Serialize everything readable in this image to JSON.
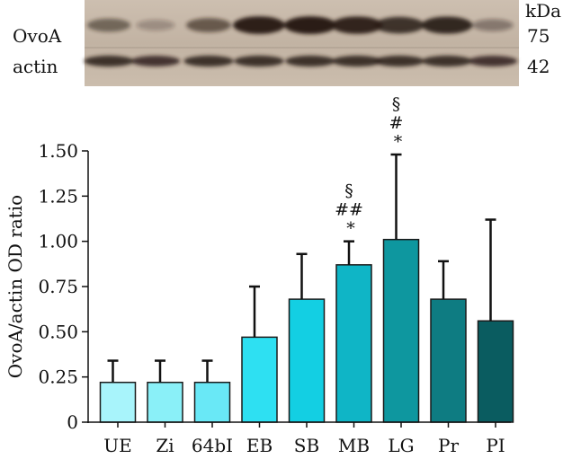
{
  "blot": {
    "rows": [
      {
        "label": "OvoA",
        "size": "75",
        "intensities": [
          0.45,
          0.15,
          0.55,
          0.98,
          1.0,
          0.95,
          0.85,
          0.92,
          0.3
        ]
      },
      {
        "label": "actin",
        "size": "42",
        "intensities": [
          0.85,
          0.8,
          0.85,
          0.85,
          0.85,
          0.85,
          0.85,
          0.85,
          0.8
        ]
      }
    ],
    "unit": "kDa"
  },
  "colors": {
    "axis": "#111111",
    "band": "#2a1c14",
    "membrane": "#c6b8a8",
    "error": "#111111",
    "bar_outline": "#1a1a1a"
  },
  "chart_data": {
    "type": "bar",
    "categories": [
      "UE",
      "Zi",
      "64bI",
      "EB",
      "SB",
      "MB",
      "LG",
      "Pr",
      "PI"
    ],
    "values": [
      0.22,
      0.22,
      0.22,
      0.47,
      0.68,
      0.87,
      1.01,
      0.68,
      0.56
    ],
    "errors": [
      0.12,
      0.12,
      0.12,
      0.28,
      0.25,
      0.13,
      0.47,
      0.21,
      0.56
    ],
    "bar_colors": [
      "#a8f4fb",
      "#8af0f8",
      "#69e8f6",
      "#2ee0f2",
      "#13cfe3",
      "#0fb5c6",
      "#0e979f",
      "#0e7c82",
      "#0a5c60"
    ],
    "annotations": [
      {
        "category": "MB",
        "lines": [
          "§",
          "##",
          "*"
        ]
      },
      {
        "category": "LG",
        "lines": [
          "§",
          "#",
          "*"
        ]
      }
    ],
    "xlabel": "",
    "ylabel": "OvoA/actin OD ratio",
    "ylim": [
      0,
      1.5
    ],
    "yticks": [
      "0",
      "0.25",
      "0.50",
      "0.75",
      "1.00",
      "1.25",
      "1.50"
    ],
    "grid": false,
    "legend": "none"
  }
}
